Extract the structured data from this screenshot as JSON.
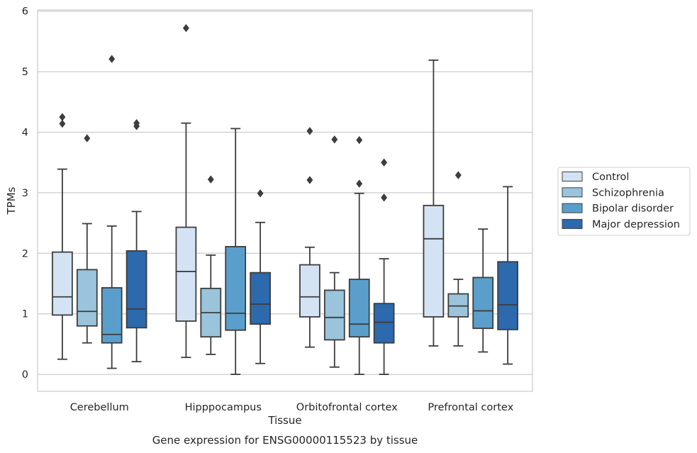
{
  "chart_data": {
    "type": "box",
    "xlabel": "Tissue",
    "ylabel": "TPMs",
    "caption": "Gene expression for ENSG00000115523 by tissue",
    "ylim": [
      -0.28,
      6.02
    ],
    "yticks": [
      0,
      1,
      2,
      3,
      4,
      5,
      6
    ],
    "grid": "horizontal",
    "legend_position": "right",
    "categories": [
      "Cerebellum",
      "Hipppocampus",
      "Orbitofrontal cortex",
      "Prefrontal cortex"
    ],
    "series": [
      {
        "name": "Control",
        "color": "#d3e3f3",
        "boxes": [
          {
            "whislo": 0.25,
            "q1": 0.98,
            "med": 1.28,
            "q3": 2.02,
            "whishi": 3.39,
            "fliers": [
              4.14,
              4.25
            ]
          },
          {
            "whislo": 0.28,
            "q1": 0.88,
            "med": 1.7,
            "q3": 2.43,
            "whishi": 4.15,
            "fliers": [
              5.72
            ]
          },
          {
            "whislo": 0.45,
            "q1": 0.95,
            "med": 1.28,
            "q3": 1.81,
            "whishi": 2.1,
            "fliers": [
              3.21,
              4.02
            ]
          },
          {
            "whislo": 0.47,
            "q1": 0.95,
            "med": 2.24,
            "q3": 2.79,
            "whishi": 5.19,
            "fliers": []
          }
        ]
      },
      {
        "name": "Schizophrenia",
        "color": "#9ac3dc",
        "boxes": [
          {
            "whislo": 0.52,
            "q1": 0.8,
            "med": 1.04,
            "q3": 1.73,
            "whishi": 2.49,
            "fliers": [
              3.9
            ]
          },
          {
            "whislo": 0.33,
            "q1": 0.62,
            "med": 1.02,
            "q3": 1.42,
            "whishi": 1.97,
            "fliers": [
              3.22
            ]
          },
          {
            "whislo": 0.12,
            "q1": 0.57,
            "med": 0.94,
            "q3": 1.39,
            "whishi": 1.68,
            "fliers": [
              3.88
            ]
          },
          {
            "whislo": 0.47,
            "q1": 0.95,
            "med": 1.13,
            "q3": 1.33,
            "whishi": 1.57,
            "fliers": [
              3.29
            ]
          }
        ]
      },
      {
        "name": "Bipolar disorder",
        "color": "#5a9fcb",
        "boxes": [
          {
            "whislo": 0.1,
            "q1": 0.52,
            "med": 0.66,
            "q3": 1.43,
            "whishi": 2.45,
            "fliers": [
              5.21
            ]
          },
          {
            "whislo": 0.0,
            "q1": 0.73,
            "med": 1.01,
            "q3": 2.11,
            "whishi": 4.06,
            "fliers": []
          },
          {
            "whislo": 0.0,
            "q1": 0.62,
            "med": 0.83,
            "q3": 1.57,
            "whishi": 2.99,
            "fliers": [
              3.15,
              3.87
            ]
          },
          {
            "whislo": 0.37,
            "q1": 0.76,
            "med": 1.05,
            "q3": 1.6,
            "whishi": 2.4,
            "fliers": []
          }
        ]
      },
      {
        "name": "Major depression",
        "color": "#2c69ad",
        "boxes": [
          {
            "whislo": 0.21,
            "q1": 0.77,
            "med": 1.08,
            "q3": 2.04,
            "whishi": 2.69,
            "fliers": [
              4.1,
              4.15
            ]
          },
          {
            "whislo": 0.18,
            "q1": 0.83,
            "med": 1.16,
            "q3": 1.68,
            "whishi": 2.51,
            "fliers": [
              2.99
            ]
          },
          {
            "whislo": 0.0,
            "q1": 0.52,
            "med": 0.86,
            "q3": 1.17,
            "whishi": 1.91,
            "fliers": [
              2.92,
              3.5
            ]
          },
          {
            "whislo": 0.17,
            "q1": 0.74,
            "med": 1.15,
            "q3": 1.86,
            "whishi": 3.1,
            "fliers": []
          }
        ]
      }
    ]
  }
}
